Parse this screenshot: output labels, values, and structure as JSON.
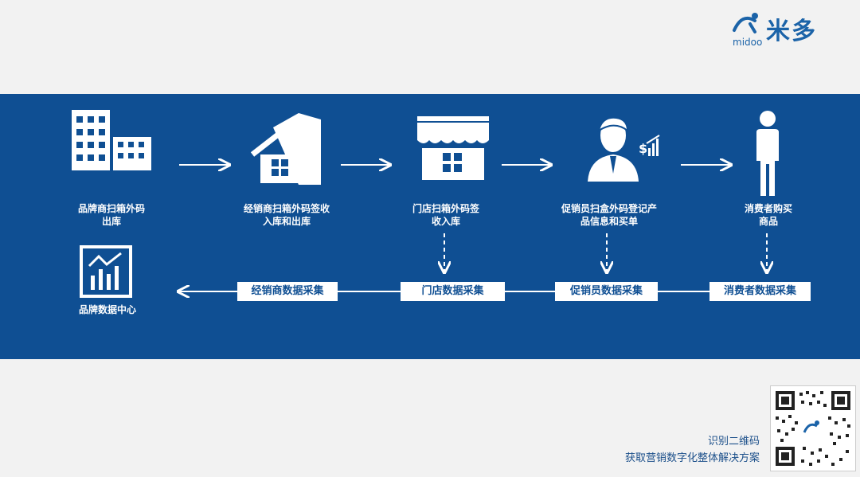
{
  "brand": {
    "name_cn": "米多",
    "name_en": "midoo"
  },
  "steps": [
    {
      "label": "品牌商扫箱外码\n出库",
      "icon": "buildings-icon"
    },
    {
      "label": "经销商扫箱外码签收\n入库和出库",
      "icon": "warehouse-icon"
    },
    {
      "label": "门店扫箱外码签\n收入库",
      "icon": "store-icon"
    },
    {
      "label": "促销员扫盒外码登记产\n品信息和买单",
      "icon": "salesperson-icon"
    },
    {
      "label": "消费者购买\n商品",
      "icon": "person-icon"
    }
  ],
  "data_center": {
    "label": "品牌数据中心",
    "icon": "chart-monitor-icon"
  },
  "collections": [
    "经销商数据采集",
    "门店数据采集",
    "促销员数据采集",
    "消费者数据采集"
  ],
  "qr": {
    "line1": "识别二维码",
    "line2": "获取营销数字化整体解决方案"
  },
  "colors": {
    "band": "#0f4f93",
    "text_accent": "#1b63a8",
    "background": "#f2f2f2"
  }
}
